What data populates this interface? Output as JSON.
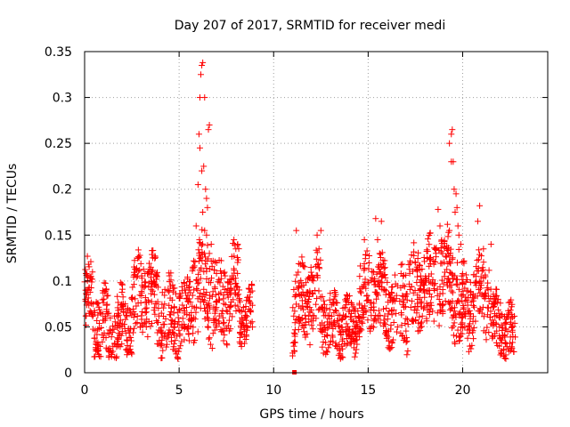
{
  "chart_data": {
    "type": "scatter",
    "title": "Day 207 of 2017, SRMTID for receiver medi",
    "xlabel": "GPS time / hours",
    "ylabel": "SRMTID / TECUs",
    "xlim": [
      0,
      24.5
    ],
    "ylim": [
      0,
      0.35
    ],
    "x_ticks": [
      {
        "value": 0,
        "label": "0"
      },
      {
        "value": 5,
        "label": "5"
      },
      {
        "value": 10,
        "label": "10"
      },
      {
        "value": 15,
        "label": "15"
      },
      {
        "value": 20,
        "label": "20"
      }
    ],
    "y_ticks": [
      {
        "value": 0,
        "label": "0"
      },
      {
        "value": 0.05,
        "label": "0.05"
      },
      {
        "value": 0.1,
        "label": "0.1"
      },
      {
        "value": 0.15,
        "label": "0.15"
      },
      {
        "value": 0.2,
        "label": "0.2"
      },
      {
        "value": 0.25,
        "label": "0.25"
      },
      {
        "value": 0.3,
        "label": "0.3"
      },
      {
        "value": 0.35,
        "label": "0.35"
      }
    ],
    "grid": true,
    "marker": "+",
    "color": "#ff0000",
    "gap_marker": {
      "x": 11.1,
      "y": 0.0
    },
    "series": [
      {
        "name": "medi",
        "segments": [
          {
            "x_start": 0.0,
            "x_end": 0.5,
            "base": 0.065,
            "amp": 0.02,
            "noise": 0.035
          },
          {
            "x_start": 0.5,
            "x_end": 1.5,
            "base": 0.05,
            "amp": 0.015,
            "noise": 0.035
          },
          {
            "x_start": 1.5,
            "x_end": 2.5,
            "base": 0.058,
            "amp": 0.015,
            "noise": 0.035
          },
          {
            "x_start": 2.5,
            "x_end": 3.8,
            "base": 0.075,
            "amp": 0.015,
            "noise": 0.04
          },
          {
            "x_start": 3.8,
            "x_end": 5.0,
            "base": 0.065,
            "amp": 0.015,
            "noise": 0.04
          },
          {
            "x_start": 5.0,
            "x_end": 5.7,
            "base": 0.065,
            "amp": 0.01,
            "noise": 0.035
          },
          {
            "x_start": 5.7,
            "x_end": 6.8,
            "base": 0.085,
            "amp": 0.02,
            "noise": 0.05
          },
          {
            "x_start": 6.8,
            "x_end": 7.6,
            "base": 0.08,
            "amp": 0.01,
            "noise": 0.04
          },
          {
            "x_start": 7.6,
            "x_end": 8.2,
            "base": 0.1,
            "amp": 0.015,
            "noise": 0.04
          },
          {
            "x_start": 8.2,
            "x_end": 8.9,
            "base": 0.06,
            "amp": 0.01,
            "noise": 0.025
          },
          {
            "x_start": 11.0,
            "x_end": 12.5,
            "base": 0.075,
            "amp": 0.015,
            "noise": 0.04
          },
          {
            "x_start": 12.5,
            "x_end": 14.5,
            "base": 0.055,
            "amp": 0.01,
            "noise": 0.03
          },
          {
            "x_start": 14.5,
            "x_end": 15.5,
            "base": 0.08,
            "amp": 0.015,
            "noise": 0.04
          },
          {
            "x_start": 15.5,
            "x_end": 16.6,
            "base": 0.075,
            "amp": 0.015,
            "noise": 0.04
          },
          {
            "x_start": 16.6,
            "x_end": 18.5,
            "base": 0.085,
            "amp": 0.015,
            "noise": 0.045
          },
          {
            "x_start": 18.5,
            "x_end": 19.8,
            "base": 0.105,
            "amp": 0.02,
            "noise": 0.045
          },
          {
            "x_start": 19.8,
            "x_end": 21.5,
            "base": 0.075,
            "amp": 0.015,
            "noise": 0.04
          },
          {
            "x_start": 21.5,
            "x_end": 22.8,
            "base": 0.05,
            "amp": 0.01,
            "noise": 0.03
          }
        ],
        "peaks": [
          {
            "x": 6.1,
            "y": 0.3
          },
          {
            "x": 6.15,
            "y": 0.325
          },
          {
            "x": 6.2,
            "y": 0.335
          },
          {
            "x": 6.25,
            "y": 0.338
          },
          {
            "x": 6.35,
            "y": 0.3
          },
          {
            "x": 6.05,
            "y": 0.26
          },
          {
            "x": 6.1,
            "y": 0.245
          },
          {
            "x": 6.2,
            "y": 0.22
          },
          {
            "x": 6.3,
            "y": 0.225
          },
          {
            "x": 6.0,
            "y": 0.205
          },
          {
            "x": 6.4,
            "y": 0.2
          },
          {
            "x": 6.45,
            "y": 0.19
          },
          {
            "x": 6.5,
            "y": 0.18
          },
          {
            "x": 6.55,
            "y": 0.265
          },
          {
            "x": 6.6,
            "y": 0.27
          },
          {
            "x": 6.25,
            "y": 0.175
          },
          {
            "x": 6.35,
            "y": 0.155
          },
          {
            "x": 6.45,
            "y": 0.15
          },
          {
            "x": 6.6,
            "y": 0.13
          },
          {
            "x": 5.9,
            "y": 0.16
          },
          {
            "x": 6.7,
            "y": 0.14
          },
          {
            "x": 7.9,
            "y": 0.145
          },
          {
            "x": 8.0,
            "y": 0.135
          },
          {
            "x": 8.1,
            "y": 0.14
          },
          {
            "x": 12.5,
            "y": 0.155
          },
          {
            "x": 12.3,
            "y": 0.15
          },
          {
            "x": 12.4,
            "y": 0.135
          },
          {
            "x": 11.2,
            "y": 0.155
          },
          {
            "x": 15.4,
            "y": 0.168
          },
          {
            "x": 15.7,
            "y": 0.165
          },
          {
            "x": 15.5,
            "y": 0.145
          },
          {
            "x": 14.8,
            "y": 0.145
          },
          {
            "x": 18.7,
            "y": 0.178
          },
          {
            "x": 18.8,
            "y": 0.16
          },
          {
            "x": 19.3,
            "y": 0.25
          },
          {
            "x": 19.4,
            "y": 0.26
          },
          {
            "x": 19.45,
            "y": 0.265
          },
          {
            "x": 19.4,
            "y": 0.23
          },
          {
            "x": 19.5,
            "y": 0.23
          },
          {
            "x": 19.55,
            "y": 0.2
          },
          {
            "x": 19.65,
            "y": 0.195
          },
          {
            "x": 19.7,
            "y": 0.18
          },
          {
            "x": 19.6,
            "y": 0.175
          },
          {
            "x": 19.75,
            "y": 0.16
          },
          {
            "x": 19.8,
            "y": 0.15
          },
          {
            "x": 19.3,
            "y": 0.155
          },
          {
            "x": 19.9,
            "y": 0.14
          },
          {
            "x": 20.9,
            "y": 0.182
          },
          {
            "x": 20.8,
            "y": 0.165
          },
          {
            "x": 21.5,
            "y": 0.14
          },
          {
            "x": 21.1,
            "y": 0.135
          },
          {
            "x": 20.7,
            "y": 0.105
          },
          {
            "x": 17.5,
            "y": 0.12
          }
        ]
      }
    ]
  }
}
